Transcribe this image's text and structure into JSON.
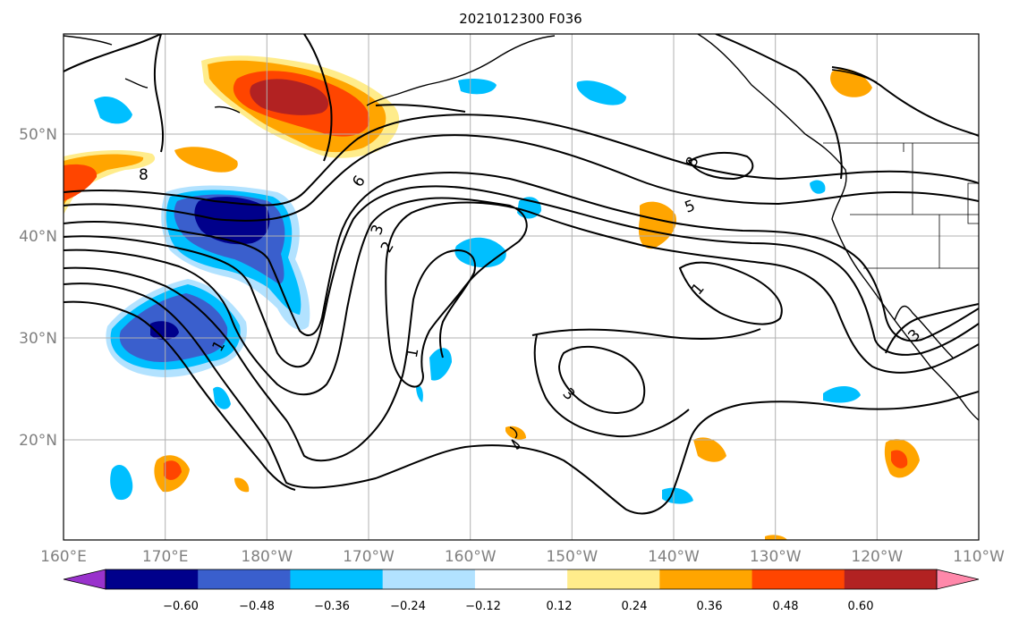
{
  "title": "2021012300 F036",
  "map": {
    "lon_ticks": [
      "160°E",
      "170°E",
      "180°W",
      "170°W",
      "160°W",
      "150°W",
      "140°W",
      "130°W",
      "120°W",
      "110°W"
    ],
    "lat_ticks": [
      "50°N",
      "40°N",
      "30°N",
      "20°N"
    ],
    "contour_labels": [
      "8",
      "6",
      "3",
      "2",
      "1",
      "1",
      "3",
      "5",
      "8",
      "1",
      "3"
    ]
  },
  "colorbar": {
    "colors": [
      "#9932CC",
      "#00008B",
      "#3A5FCD",
      "#00BFFF",
      "#B2E2FF",
      "#FFFFFF",
      "#FFEC8B",
      "#FFA500",
      "#FF4500",
      "#B22222",
      "#FF88AA"
    ],
    "labels": [
      "−0.60",
      "−0.48",
      "−0.36",
      "−0.24",
      "−0.12",
      "0.12",
      "0.24",
      "0.36",
      "0.48",
      "0.60"
    ]
  }
}
